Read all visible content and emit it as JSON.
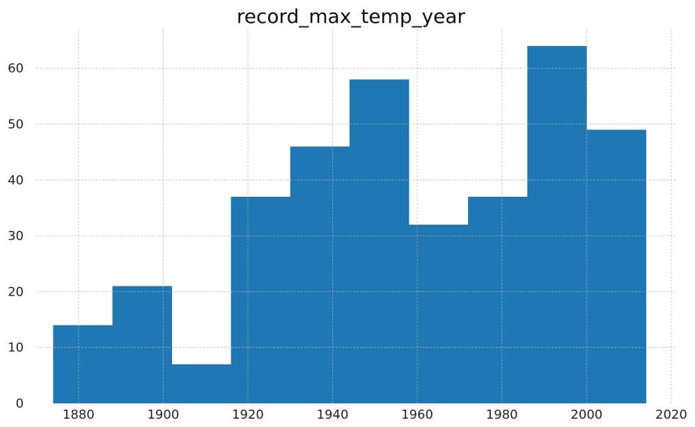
{
  "chart_data": {
    "type": "bar",
    "title": "record_max_temp_year",
    "xlabel": "",
    "ylabel": "",
    "bin_edges": [
      1874,
      1888,
      1902,
      1916,
      1930,
      1944,
      1958,
      1972,
      1986,
      2000,
      2014
    ],
    "values": [
      14,
      21,
      7,
      37,
      46,
      58,
      32,
      37,
      64,
      49
    ],
    "xlim": [
      1870,
      2021
    ],
    "ylim": [
      0,
      67
    ],
    "xticks": [
      1880,
      1900,
      1920,
      1940,
      1960,
      1980,
      2000,
      2020
    ],
    "yticks": [
      0,
      10,
      20,
      30,
      40,
      50,
      60
    ],
    "grid": true,
    "bar_color": "#1f77b4",
    "grid_color": "#b0b0b0"
  }
}
